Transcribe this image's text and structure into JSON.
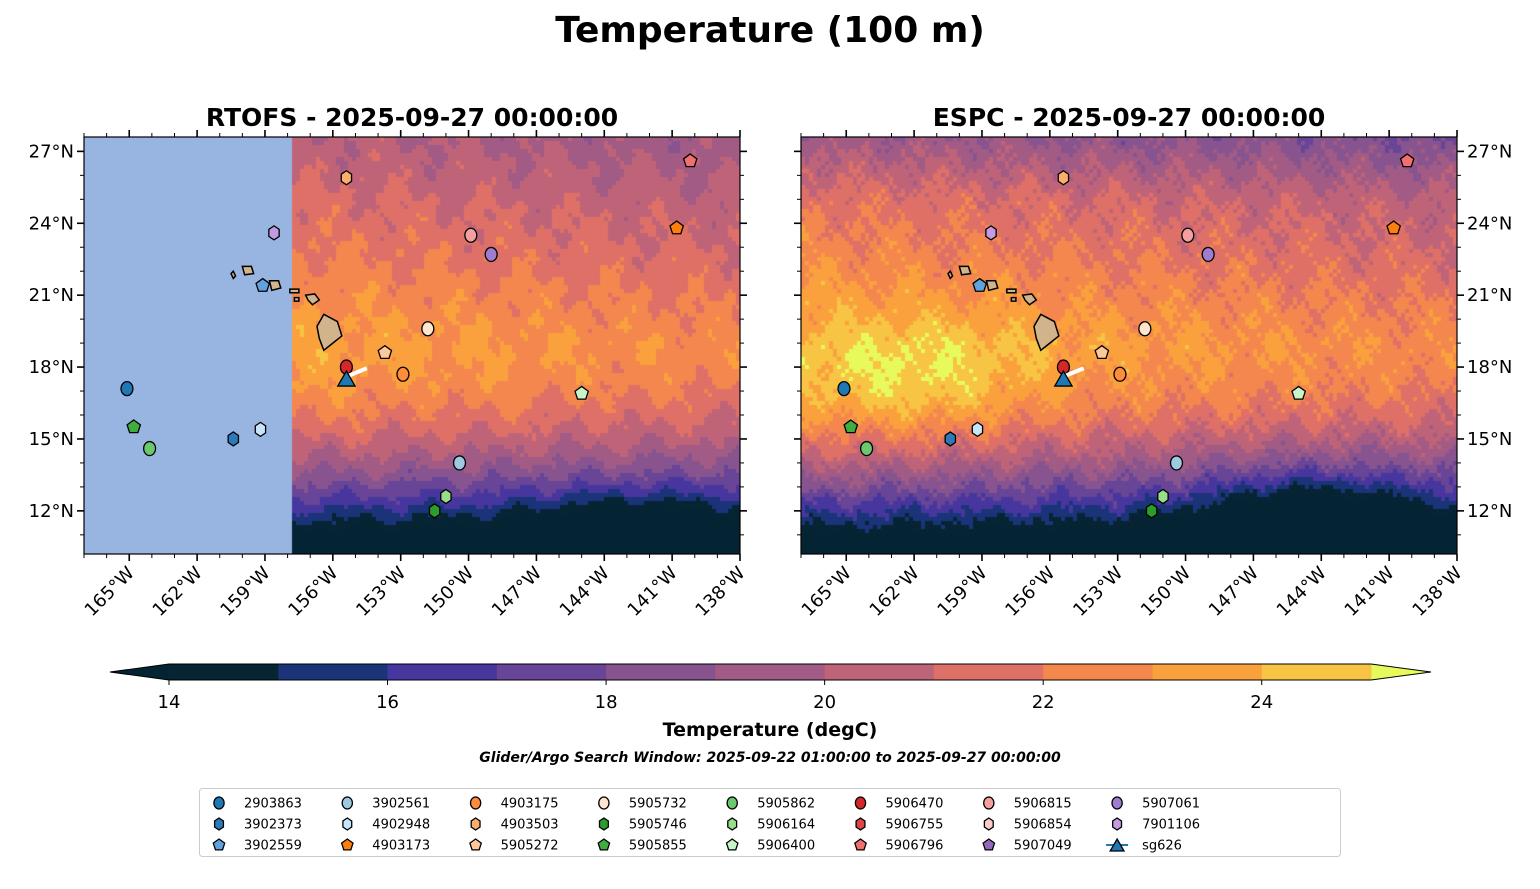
{
  "figure": {
    "title": "Temperature (100 m)",
    "search_window": "Glider/Argo Search Window: 2025-09-22 01:00:00 to 2025-09-27 00:00:00"
  },
  "chart_data": {
    "type": "heatmap",
    "panels": [
      {
        "id": "rtofs",
        "title": "RTOFS - 2025-09-27 00:00:00",
        "lat_labels_side": "left",
        "no_data_west_of_lon": -157.8
      },
      {
        "id": "espc",
        "title": "ESPC - 2025-09-27 00:00:00",
        "lat_labels_side": "right"
      }
    ],
    "lon_range": [
      -167.0,
      -138.0
    ],
    "lat_range": [
      10.2,
      27.6
    ],
    "lon_ticks": [
      -165,
      -162,
      -159,
      -156,
      -153,
      -150,
      -147,
      -144,
      -141,
      -138
    ],
    "lon_tick_labels": [
      "165°W",
      "162°W",
      "159°W",
      "156°W",
      "153°W",
      "150°W",
      "147°W",
      "144°W",
      "141°W",
      "138°W"
    ],
    "lat_ticks": [
      27,
      24,
      21,
      18,
      15,
      12
    ],
    "lat_tick_labels": [
      "27°N",
      "24°N",
      "21°N",
      "18°N",
      "15°N",
      "12°N"
    ],
    "colorbar": {
      "label": "Temperature (degC)",
      "levels": [
        14,
        15,
        16,
        17,
        18,
        19,
        20,
        21,
        22,
        23,
        24,
        25
      ],
      "colors": [
        "#062433",
        "#1b3379",
        "#47369e",
        "#684596",
        "#87548f",
        "#a25b84",
        "#bf6478",
        "#df7067",
        "#f3874d",
        "#faa13e",
        "#f8c443"
      ],
      "under_color": "#042333",
      "over_color": "#e8fa5b",
      "tick_values": [
        14,
        16,
        18,
        20,
        22,
        24
      ],
      "tick_labels": [
        "14",
        "16",
        "18",
        "20",
        "22",
        "24"
      ],
      "extend": "both"
    },
    "no_data_color": "#97b5e0",
    "land_color": "#d2b48c",
    "markers": [
      {
        "id": "2903863",
        "shape": "circle",
        "color": "#1f77b4",
        "lon": -165.1,
        "lat": 17.1
      },
      {
        "id": "3902373",
        "shape": "hexagon",
        "color": "#2b7bba",
        "lon": -160.4,
        "lat": 15.0
      },
      {
        "id": "3902559",
        "shape": "pentagon",
        "color": "#5fa2dd",
        "lon": -159.1,
        "lat": 21.4
      },
      {
        "id": "3902561",
        "shape": "circle",
        "color": "#9ecae1",
        "lon": -150.4,
        "lat": 14.0
      },
      {
        "id": "4902948",
        "shape": "hexagon",
        "color": "#c6e5fb",
        "lon": -159.2,
        "lat": 15.4
      },
      {
        "id": "4903173",
        "shape": "pentagon",
        "color": "#ff7f0e",
        "lon": -140.8,
        "lat": 23.8
      },
      {
        "id": "4903175",
        "shape": "circle",
        "color": "#fd8d3c",
        "lon": -152.9,
        "lat": 17.7
      },
      {
        "id": "4903503",
        "shape": "hexagon",
        "color": "#fdae6b",
        "lon": -155.4,
        "lat": 25.9
      },
      {
        "id": "5905272",
        "shape": "pentagon",
        "color": "#fdc99c",
        "lon": -153.7,
        "lat": 18.6
      },
      {
        "id": "5905732",
        "shape": "circle",
        "color": "#fee6ce",
        "lon": -151.8,
        "lat": 19.6
      },
      {
        "id": "5905746",
        "shape": "hexagon",
        "color": "#2a9d2a",
        "lon": -151.5,
        "lat": 12.0
      },
      {
        "id": "5905855",
        "shape": "pentagon",
        "color": "#3fae3f",
        "lon": -164.8,
        "lat": 15.5
      },
      {
        "id": "5905862",
        "shape": "circle",
        "color": "#6cc86c",
        "lon": -164.1,
        "lat": 14.6
      },
      {
        "id": "5906164",
        "shape": "hexagon",
        "color": "#98df8a",
        "lon": -151.0,
        "lat": 12.6
      },
      {
        "id": "5906400",
        "shape": "pentagon",
        "color": "#c7f5c7",
        "lon": -145.0,
        "lat": 16.9
      },
      {
        "id": "5906470",
        "shape": "circle",
        "color": "#d62728",
        "lon": -155.4,
        "lat": 18.0
      },
      {
        "id": "5906755",
        "shape": "hexagon",
        "color": "#e04545",
        "lon": null,
        "lat": null
      },
      {
        "id": "5906796",
        "shape": "pentagon",
        "color": "#f07070",
        "lon": -140.2,
        "lat": 26.6
      },
      {
        "id": "5906815",
        "shape": "circle",
        "color": "#f4a0a0",
        "lon": -149.9,
        "lat": 23.5
      },
      {
        "id": "5906854",
        "shape": "hexagon",
        "color": "#fbcaca",
        "lon": null,
        "lat": null
      },
      {
        "id": "5907049",
        "shape": "pentagon",
        "color": "#9467bd",
        "lon": null,
        "lat": null
      },
      {
        "id": "5907061",
        "shape": "circle",
        "color": "#a07cd0",
        "lon": -149.0,
        "lat": 22.7
      },
      {
        "id": "7901106",
        "shape": "hexagon",
        "color": "#c29be0",
        "lon": -158.6,
        "lat": 23.6
      },
      {
        "id": "sg626",
        "shape": "triangle",
        "color": "#1f77b4",
        "lon": -155.4,
        "lat": 17.5,
        "track": [
          [
            -155.4,
            17.6
          ],
          [
            -154.5,
            17.95
          ]
        ]
      }
    ]
  }
}
